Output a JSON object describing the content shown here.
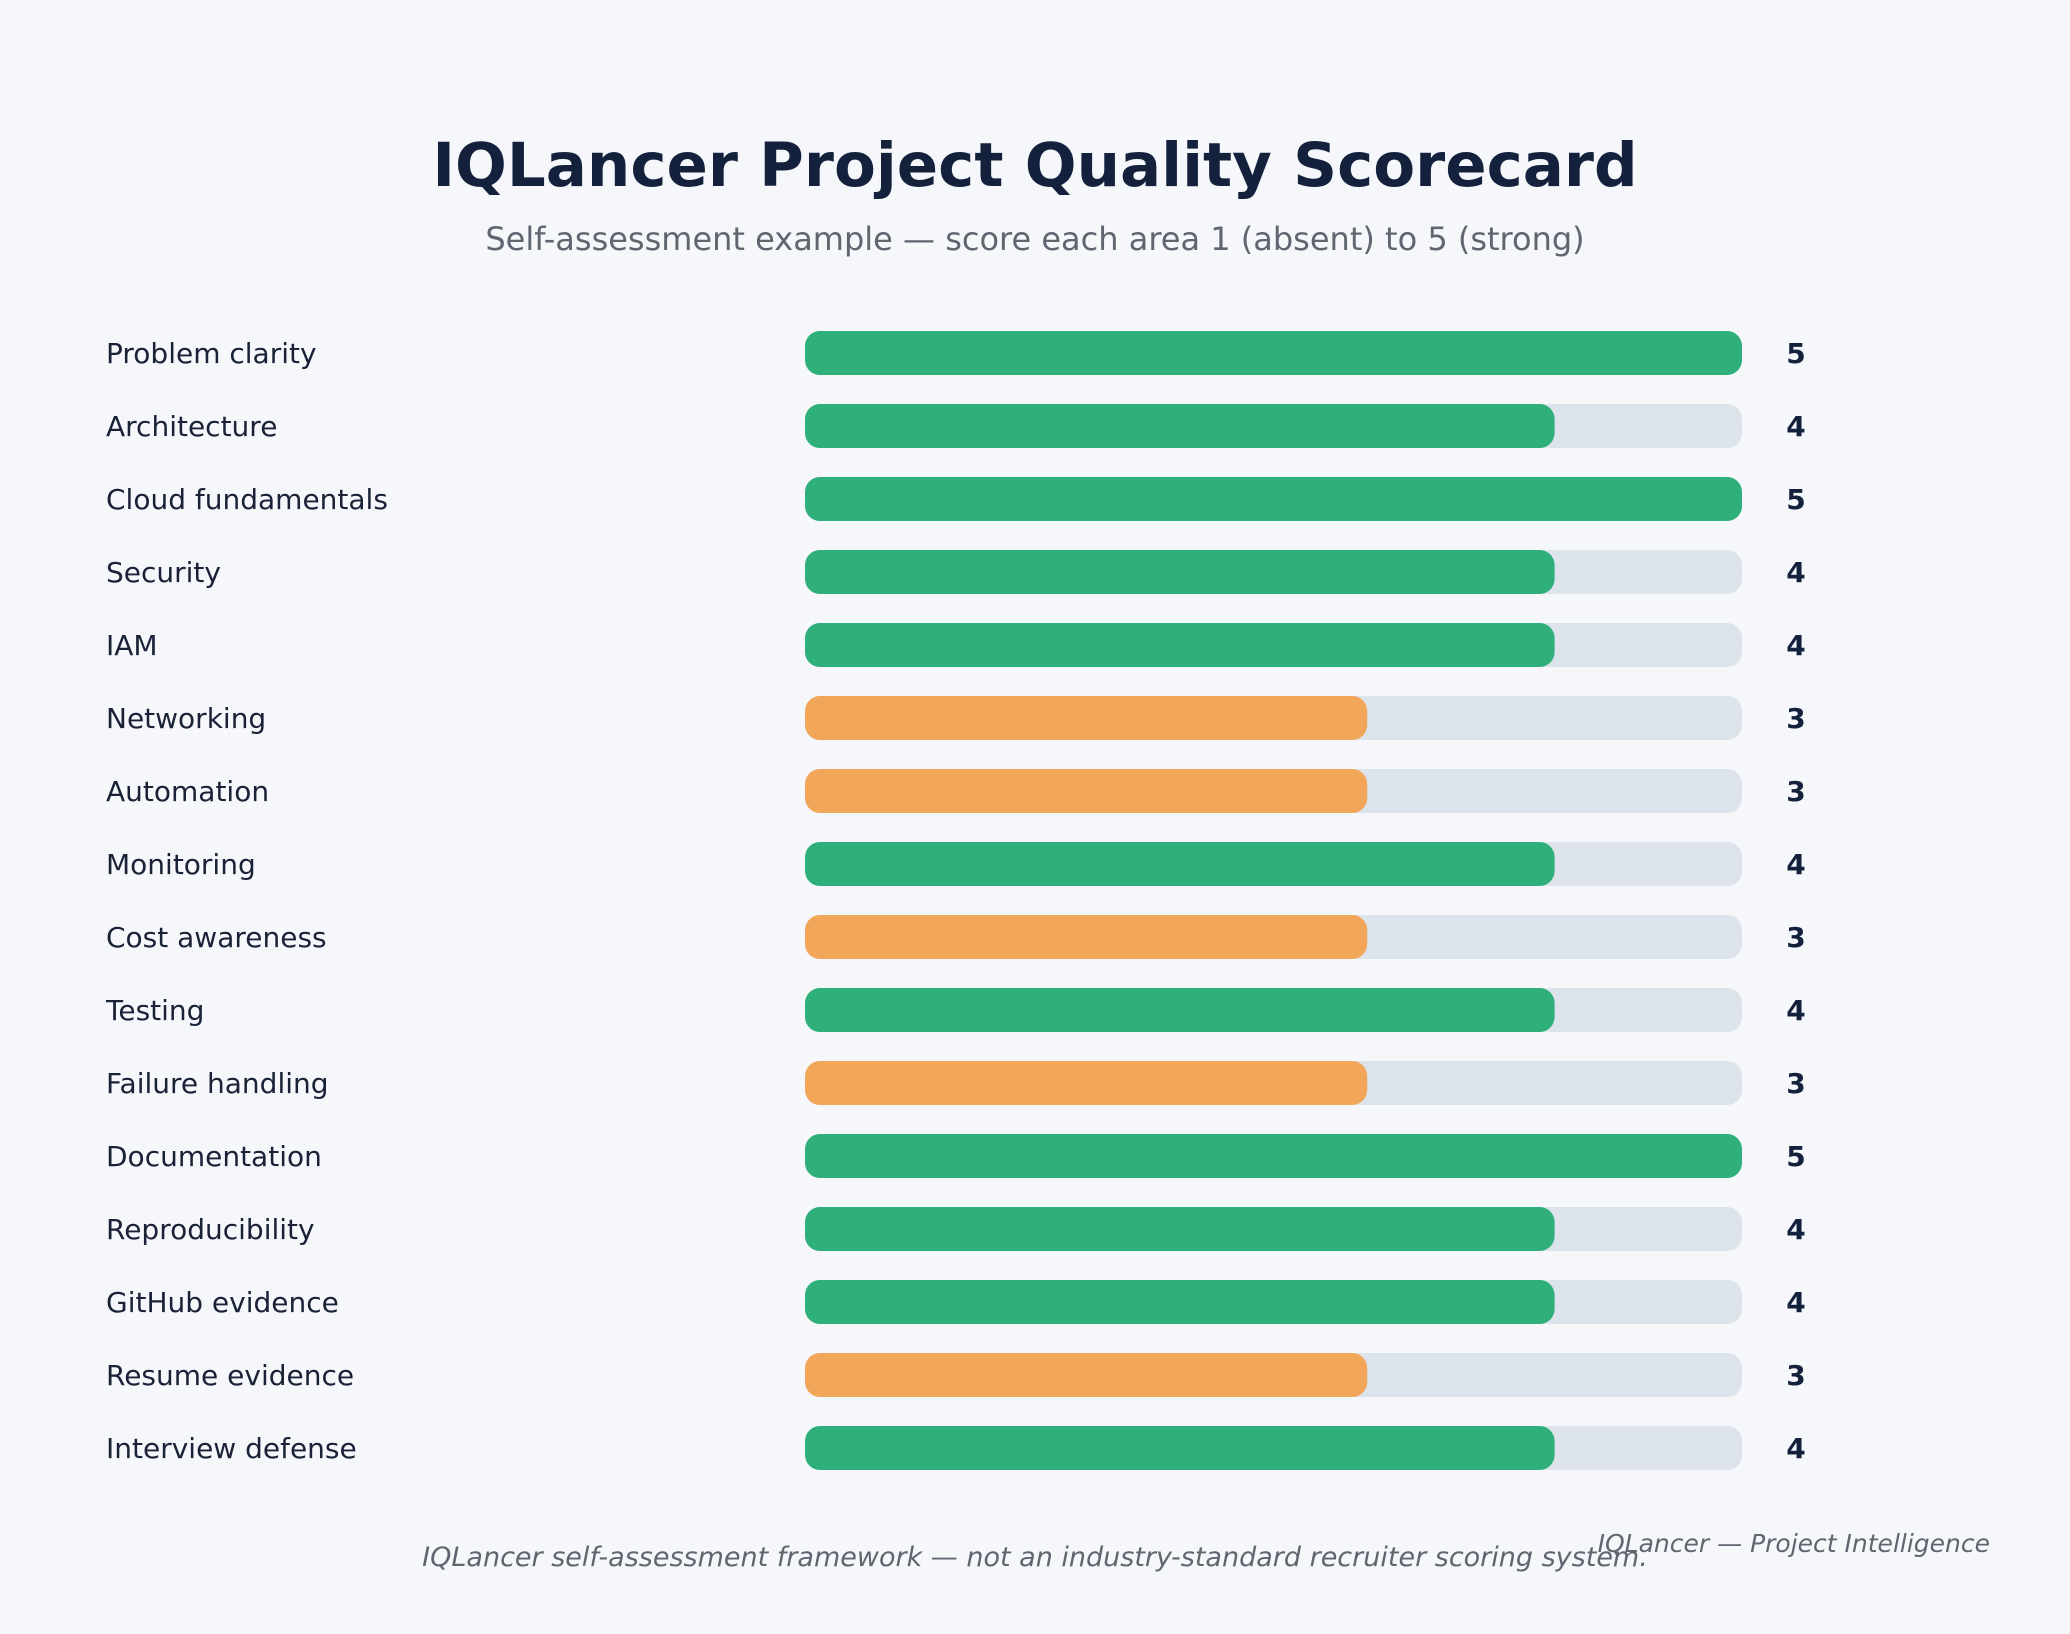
{
  "chart_data": {
    "type": "bar",
    "orientation": "horizontal",
    "title": "IQLancer Project Quality Scorecard",
    "subtitle": "Self-assessment example — score each area 1 (absent) to 5 (strong)",
    "categories": [
      "Problem clarity",
      "Architecture",
      "Cloud fundamentals",
      "Security",
      "IAM",
      "Networking",
      "Automation",
      "Monitoring",
      "Cost awareness",
      "Testing",
      "Failure handling",
      "Documentation",
      "Reproducibility",
      "GitHub evidence",
      "Resume evidence",
      "Interview defense"
    ],
    "values": [
      5,
      4,
      5,
      4,
      4,
      3,
      3,
      4,
      3,
      4,
      3,
      5,
      4,
      4,
      3,
      4
    ],
    "xlim": [
      0,
      5
    ],
    "colors": {
      "strong": "#2fb07a",
      "moderate": "#f2a65a",
      "track": "#dde3eb"
    },
    "color_rule": "values of 4 or more use strong color, values of 3 or less use moderate color"
  },
  "footer": {
    "note": "IQLancer self-assessment framework — not an industry-standard recruiter scoring system.",
    "brand": "IQLancer — Project Intelligence"
  }
}
